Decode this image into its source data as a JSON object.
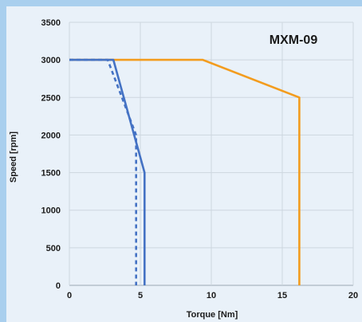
{
  "chart_data": {
    "type": "line",
    "title": "MXM-09",
    "xlabel": "Torque [Nm]",
    "ylabel": "Speed [rpm]",
    "xlim": [
      0,
      20
    ],
    "ylim": [
      0,
      3500
    ],
    "x_ticks": [
      0,
      5,
      10,
      15,
      20
    ],
    "y_ticks": [
      0,
      500,
      1000,
      1500,
      2000,
      2500,
      3000,
      3500
    ],
    "grid": true,
    "series": [
      {
        "color": "#f39c1e",
        "style": "solid",
        "points": [
          [
            0,
            3000
          ],
          [
            9.4,
            3000
          ],
          [
            16.2,
            2500
          ],
          [
            16.2,
            0
          ]
        ]
      },
      {
        "color": "#4472c4",
        "style": "solid",
        "points": [
          [
            0,
            3000
          ],
          [
            3.1,
            3000
          ],
          [
            5.3,
            1500
          ],
          [
            5.3,
            0
          ]
        ]
      },
      {
        "color": "#4472c4",
        "style": "dashed",
        "points": [
          [
            0,
            3000
          ],
          [
            2.7,
            3000
          ],
          [
            4.7,
            2000
          ],
          [
            4.7,
            0
          ]
        ]
      }
    ]
  }
}
